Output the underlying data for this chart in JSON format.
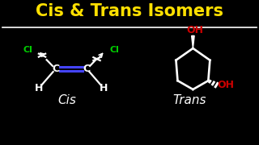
{
  "title": "Cis & Trans Isomers",
  "title_color": "#FFE000",
  "bg_color": "#000000",
  "line_color": "#FFFFFF",
  "label_cis": "Cis",
  "label_trans": "Trans",
  "label_color": "#FFFFFF",
  "cl_color": "#00CC00",
  "oh_color": "#CC0000",
  "double_bond_color": "#4444FF",
  "atom_color": "#FFFFFF",
  "figsize": [
    3.2,
    1.8
  ],
  "dpi": 100
}
